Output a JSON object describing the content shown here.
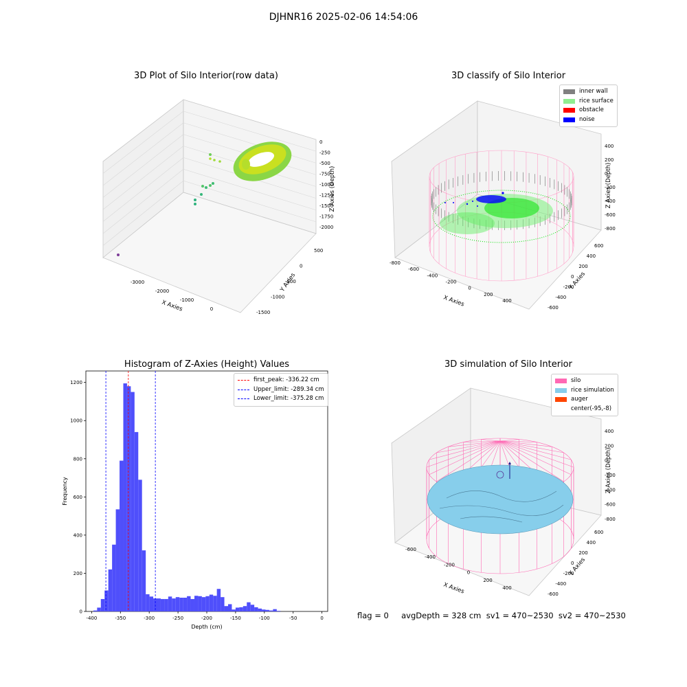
{
  "suptitle": "DJHNR16 2025-02-06 14:54:06",
  "footer": "flag = 0     avgDepth = 328 cm  sv1 = 470~2530  sv2 = 470~2530",
  "chart_data": [
    {
      "type": "scatter",
      "title": "3D Plot of Silo Interior(row data)",
      "xlabel": "X Axies",
      "ylabel": "Y Axies",
      "zlabel": "Z Axies (Depth)",
      "xticks": [
        "-3000",
        "-2000",
        "-1000",
        "0"
      ],
      "yticks": [
        "500",
        "0",
        "-500",
        "-1000",
        "-1500"
      ],
      "zticks": [
        "0",
        "-250",
        "-500",
        "-750",
        "-1000",
        "-1250",
        "-1500",
        "-1750",
        "-2000"
      ],
      "colors": {
        "surface_high": "#f2e41f",
        "surface_low": "#86d549",
        "outlier": "#3fbc73",
        "far_outlier": "#7d3c98"
      }
    },
    {
      "type": "scatter",
      "title": "3D classify of Silo Interior",
      "xlabel": "X Axies",
      "ylabel": "Y Axies",
      "zlabel": "Z Axies (Depth)",
      "xticks": [
        "-800",
        "-600",
        "-400",
        "-200",
        "0",
        "200",
        "400"
      ],
      "yticks": [
        "600",
        "400",
        "200",
        "0",
        "-200",
        "-400",
        "-600"
      ],
      "zticks": [
        "400",
        "200",
        "0",
        "-200",
        "-400",
        "-600",
        "-800"
      ],
      "legend": [
        {
          "label": "inner wall",
          "color": "#808080"
        },
        {
          "label": "rice surface",
          "color": "#90ee90"
        },
        {
          "label": "obstacle",
          "color": "#ff0000"
        },
        {
          "label": "noise",
          "color": "#0000ff"
        }
      ]
    },
    {
      "type": "bar",
      "title": "Histogram of Z-Axies (Height) Values",
      "xlabel": "Depth (cm)",
      "ylabel": "Frequency",
      "xlim": [
        -410,
        10
      ],
      "ylim": [
        0,
        1260
      ],
      "xticks": [
        -400,
        -350,
        -300,
        -250,
        -200,
        -150,
        -100,
        -50,
        0
      ],
      "yticks": [
        0,
        200,
        400,
        600,
        800,
        1000,
        1200
      ],
      "bin_start": -397,
      "bin_width": 6.5,
      "values": [
        5,
        20,
        65,
        110,
        220,
        350,
        535,
        790,
        1195,
        1180,
        1150,
        940,
        690,
        320,
        90,
        78,
        68,
        68,
        65,
        65,
        78,
        68,
        75,
        72,
        72,
        80,
        65,
        82,
        80,
        75,
        80,
        88,
        82,
        118,
        75,
        28,
        38,
        10,
        20,
        22,
        28,
        48,
        35,
        22,
        15,
        10,
        8,
        5,
        12,
        3
      ],
      "bar_color": "#4f4ffb",
      "vlines": [
        {
          "label": "first_peak: -336.22 cm",
          "x": -336.22,
          "color": "#ff0000"
        },
        {
          "label": "Upper_limit: -289.34 cm",
          "x": -289.34,
          "color": "#0000ff"
        },
        {
          "label": "Lower_limit: -375.28 cm",
          "x": -375.28,
          "color": "#0000ff"
        }
      ]
    },
    {
      "type": "area",
      "title": "3D simulation of Silo Interior",
      "xlabel": "X Axies",
      "ylabel": "Y Axies",
      "zlabel": "Z Axies (Depth)",
      "xticks": [
        "-600",
        "-400",
        "-200",
        "0",
        "200",
        "400"
      ],
      "yticks": [
        "600",
        "400",
        "200",
        "0",
        "-200",
        "-400",
        "-600"
      ],
      "zticks": [
        "400",
        "200",
        "0",
        "-200",
        "-400",
        "-600",
        "-800"
      ],
      "legend": [
        {
          "label": "silo",
          "color": "#ff69b4"
        },
        {
          "label": "rice simulation",
          "color": "#87ceeb"
        },
        {
          "label": "auger",
          "color": "#ff4500"
        },
        {
          "label": "center(-95,-8)",
          "color": ""
        }
      ]
    }
  ]
}
